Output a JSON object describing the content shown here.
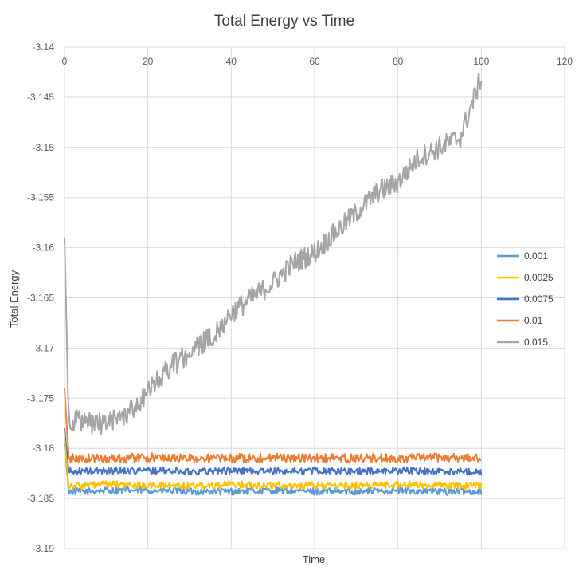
{
  "chart_data": {
    "type": "line",
    "title": "Total Energy vs Time",
    "xlabel": "Time",
    "ylabel": "Total Energy",
    "xlim": [
      0,
      120
    ],
    "ylim": [
      -3.19,
      -3.14
    ],
    "x_ticks": [
      "0",
      "20",
      "40",
      "60",
      "80",
      "100",
      "120"
    ],
    "y_ticks": [
      "-3.14",
      "-3.145",
      "-3.15",
      "-3.155",
      "-3.16",
      "-3.165",
      "-3.17",
      "-3.175",
      "-3.18",
      "-3.185",
      "-3.19"
    ],
    "x_axis_position": "top",
    "grid": true,
    "legend_position": "right",
    "series": [
      {
        "name": "0.001",
        "color": "#5B9BD5",
        "x": [
          0,
          1,
          5,
          10,
          20,
          30,
          40,
          50,
          60,
          70,
          80,
          90,
          100
        ],
        "y": [
          -3.1795,
          -3.1843,
          -3.1843,
          -3.1842,
          -3.1842,
          -3.1843,
          -3.1843,
          -3.1842,
          -3.1843,
          -3.1843,
          -3.1842,
          -3.1843,
          -3.1843
        ]
      },
      {
        "name": "0.0025",
        "color": "#FFC000",
        "x": [
          0,
          1,
          5,
          10,
          20,
          30,
          40,
          50,
          60,
          70,
          80,
          90,
          100
        ],
        "y": [
          -3.179,
          -3.1837,
          -3.1837,
          -3.1836,
          -3.1837,
          -3.1837,
          -3.1836,
          -3.1837,
          -3.1837,
          -3.1837,
          -3.1836,
          -3.1837,
          -3.1837
        ]
      },
      {
        "name": "0.0075",
        "color": "#4472C4",
        "x": [
          0,
          1,
          5,
          10,
          20,
          30,
          40,
          50,
          60,
          70,
          80,
          90,
          100
        ],
        "y": [
          -3.178,
          -3.1823,
          -3.1823,
          -3.1822,
          -3.1822,
          -3.1823,
          -3.1822,
          -3.1823,
          -3.1822,
          -3.1823,
          -3.1822,
          -3.1823,
          -3.1823
        ]
      },
      {
        "name": "0.01",
        "color": "#ED7D31",
        "x": [
          0,
          1,
          5,
          10,
          20,
          30,
          40,
          50,
          60,
          70,
          80,
          90,
          100
        ],
        "y": [
          -3.174,
          -3.181,
          -3.181,
          -3.181,
          -3.1809,
          -3.181,
          -3.181,
          -3.1809,
          -3.181,
          -3.181,
          -3.181,
          -3.1809,
          -3.181
        ]
      },
      {
        "name": "0.015",
        "color": "#A5A5A5",
        "x": [
          0,
          1,
          5,
          10,
          15,
          20,
          25,
          30,
          35,
          40,
          45,
          50,
          55,
          60,
          65,
          70,
          75,
          80,
          85,
          90,
          95,
          100
        ],
        "y": [
          -3.159,
          -3.177,
          -3.1775,
          -3.1775,
          -3.1765,
          -3.1745,
          -3.172,
          -3.1705,
          -3.169,
          -3.1665,
          -3.165,
          -3.1635,
          -3.1615,
          -3.1605,
          -3.1585,
          -3.1565,
          -3.1545,
          -3.1535,
          -3.151,
          -3.15,
          -3.149,
          -3.143
        ]
      }
    ]
  }
}
